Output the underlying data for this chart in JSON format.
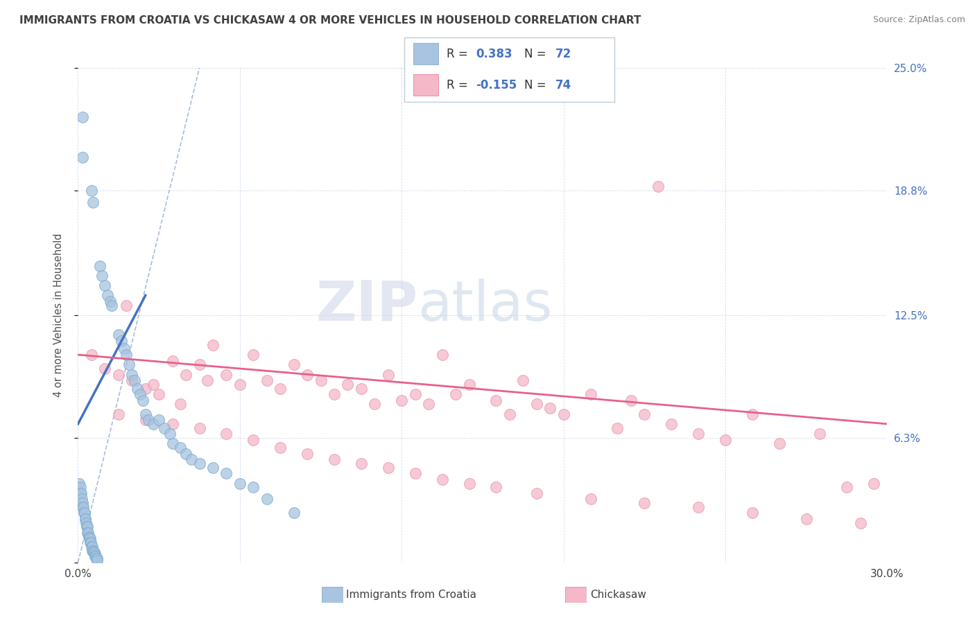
{
  "title": "IMMIGRANTS FROM CROATIA VS CHICKASAW 4 OR MORE VEHICLES IN HOUSEHOLD CORRELATION CHART",
  "source": "Source: ZipAtlas.com",
  "ylabel": "4 or more Vehicles in Household",
  "x_min": 0.0,
  "x_max": 30.0,
  "y_min": 0.0,
  "y_max": 25.0,
  "blue_color": "#a8c4e0",
  "blue_edge_color": "#7aacd0",
  "blue_line_color": "#4472c4",
  "pink_color": "#f4b8c8",
  "pink_edge_color": "#e898b0",
  "pink_line_color": "#e8608a",
  "dash_line_color": "#7090c0",
  "text_blue": "#4472c4",
  "text_dark": "#404040",
  "watermark_zip": "ZIP",
  "watermark_atlas": "atlas",
  "blue_scatter_x": [
    0.18,
    0.18,
    0.5,
    0.55,
    0.8,
    0.9,
    1.0,
    1.1,
    1.2,
    1.25,
    1.5,
    1.6,
    1.7,
    1.8,
    1.9,
    2.0,
    2.1,
    2.2,
    2.3,
    2.4,
    2.5,
    2.6,
    2.8,
    3.0,
    3.2,
    3.4,
    3.5,
    3.8,
    4.0,
    4.2,
    4.5,
    5.0,
    5.5,
    6.0,
    6.5,
    7.0,
    8.0,
    0.05,
    0.08,
    0.1,
    0.12,
    0.14,
    0.16,
    0.18,
    0.2,
    0.22,
    0.24,
    0.26,
    0.28,
    0.3,
    0.32,
    0.34,
    0.36,
    0.38,
    0.4,
    0.42,
    0.44,
    0.46,
    0.48,
    0.5,
    0.52,
    0.54,
    0.56,
    0.58,
    0.6,
    0.62,
    0.64,
    0.66,
    0.68,
    0.7,
    0.72
  ],
  "blue_scatter_y": [
    22.5,
    20.5,
    18.8,
    18.2,
    15.0,
    14.5,
    14.0,
    13.5,
    13.2,
    13.0,
    11.5,
    11.2,
    10.8,
    10.5,
    10.0,
    9.5,
    9.2,
    8.8,
    8.5,
    8.2,
    7.5,
    7.2,
    7.0,
    7.2,
    6.8,
    6.5,
    6.0,
    5.8,
    5.5,
    5.2,
    5.0,
    4.8,
    4.5,
    4.0,
    3.8,
    3.2,
    2.5,
    4.0,
    3.8,
    3.5,
    3.5,
    3.2,
    3.0,
    2.8,
    2.8,
    2.5,
    2.5,
    2.2,
    2.2,
    2.0,
    1.8,
    1.8,
    1.5,
    1.5,
    1.3,
    1.2,
    1.2,
    1.0,
    1.0,
    0.8,
    0.8,
    0.6,
    0.6,
    0.5,
    0.5,
    0.4,
    0.3,
    0.3,
    0.2,
    0.2,
    0.1
  ],
  "pink_scatter_x": [
    0.5,
    1.0,
    1.5,
    1.8,
    2.0,
    2.5,
    2.8,
    3.0,
    3.5,
    3.8,
    4.0,
    4.5,
    4.8,
    5.0,
    5.5,
    6.0,
    6.5,
    7.0,
    7.5,
    8.0,
    8.5,
    9.0,
    9.5,
    10.0,
    10.5,
    11.0,
    11.5,
    12.0,
    12.5,
    13.0,
    13.5,
    14.0,
    14.5,
    15.5,
    16.0,
    16.5,
    17.0,
    17.5,
    18.0,
    19.0,
    20.0,
    20.5,
    21.0,
    22.0,
    23.0,
    24.0,
    25.0,
    26.0,
    27.5,
    28.5,
    1.5,
    2.5,
    3.5,
    4.5,
    5.5,
    6.5,
    7.5,
    8.5,
    9.5,
    10.5,
    11.5,
    12.5,
    13.5,
    14.5,
    15.5,
    17.0,
    19.0,
    21.0,
    23.0,
    25.0,
    27.0,
    29.0,
    21.5,
    29.5
  ],
  "pink_scatter_y": [
    10.5,
    9.8,
    9.5,
    13.0,
    9.2,
    8.8,
    9.0,
    8.5,
    10.2,
    8.0,
    9.5,
    10.0,
    9.2,
    11.0,
    9.5,
    9.0,
    10.5,
    9.2,
    8.8,
    10.0,
    9.5,
    9.2,
    8.5,
    9.0,
    8.8,
    8.0,
    9.5,
    8.2,
    8.5,
    8.0,
    10.5,
    8.5,
    9.0,
    8.2,
    7.5,
    9.2,
    8.0,
    7.8,
    7.5,
    8.5,
    6.8,
    8.2,
    7.5,
    7.0,
    6.5,
    6.2,
    7.5,
    6.0,
    6.5,
    3.8,
    7.5,
    7.2,
    7.0,
    6.8,
    6.5,
    6.2,
    5.8,
    5.5,
    5.2,
    5.0,
    4.8,
    4.5,
    4.2,
    4.0,
    3.8,
    3.5,
    3.2,
    3.0,
    2.8,
    2.5,
    2.2,
    2.0,
    19.0,
    4.0
  ]
}
